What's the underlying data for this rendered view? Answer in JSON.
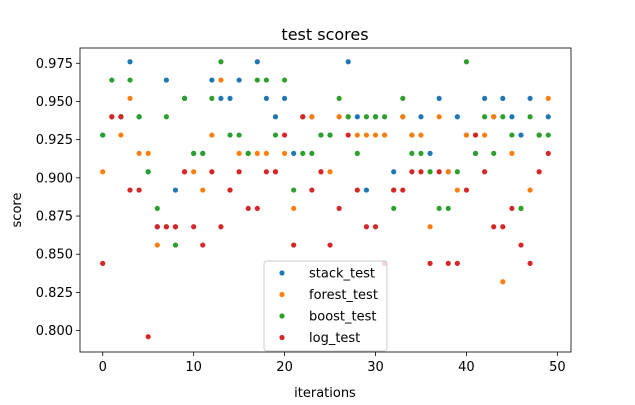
{
  "chart_data": {
    "type": "scatter",
    "title": "test scores",
    "xlabel": "iterations",
    "ylabel": "score",
    "xlim": [
      -2.5,
      51.5
    ],
    "ylim": [
      0.786,
      0.985
    ],
    "x_ticks": [
      0,
      10,
      20,
      30,
      40,
      50
    ],
    "y_ticks": [
      0.8,
      0.825,
      0.85,
      0.875,
      0.9,
      0.925,
      0.95,
      0.975
    ],
    "x_tick_labels": [
      "0",
      "10",
      "20",
      "30",
      "40",
      "50"
    ],
    "y_tick_labels": [
      "0.800",
      "0.825",
      "0.850",
      "0.875",
      "0.900",
      "0.925",
      "0.950",
      "0.975"
    ],
    "legend_position": "lower-center",
    "x": [
      0,
      1,
      2,
      3,
      4,
      5,
      6,
      7,
      8,
      9,
      10,
      11,
      12,
      13,
      14,
      15,
      16,
      17,
      18,
      19,
      20,
      21,
      22,
      23,
      24,
      25,
      26,
      27,
      28,
      29,
      30,
      31,
      32,
      33,
      34,
      35,
      36,
      37,
      38,
      39,
      40,
      41,
      42,
      43,
      44,
      45,
      46,
      47,
      48,
      49
    ],
    "series": [
      {
        "name": "stack_test",
        "color": "#1f77b4",
        "values": [
          0.928,
          0.94,
          0.94,
          0.976,
          0.94,
          0.904,
          0.868,
          0.964,
          0.892,
          0.952,
          0.916,
          0.916,
          0.964,
          0.952,
          0.952,
          0.964,
          0.916,
          0.976,
          0.952,
          0.94,
          0.952,
          0.916,
          0.94,
          0.94,
          0.928,
          0.928,
          0.94,
          0.976,
          0.94,
          0.892,
          0.94,
          0.928,
          0.904,
          0.94,
          0.928,
          0.94,
          0.916,
          0.952,
          0.904,
          0.94,
          0.928,
          0.916,
          0.952,
          0.94,
          0.952,
          0.94,
          0.928,
          0.952,
          0.928,
          0.94
        ]
      },
      {
        "name": "forest_test",
        "color": "#ff7f0e",
        "values": [
          0.904,
          0.94,
          0.928,
          0.952,
          0.916,
          0.916,
          0.856,
          0.868,
          0.868,
          0.904,
          0.904,
          0.892,
          0.928,
          0.964,
          0.892,
          0.916,
          0.916,
          0.916,
          0.916,
          0.904,
          0.916,
          0.88,
          0.94,
          0.94,
          0.904,
          0.904,
          0.94,
          0.94,
          0.928,
          0.928,
          0.928,
          0.928,
          0.892,
          0.94,
          0.928,
          0.928,
          0.868,
          0.94,
          0.904,
          0.892,
          0.928,
          0.928,
          0.928,
          0.94,
          0.832,
          0.916,
          0.88,
          0.892,
          0.928,
          0.952
        ]
      },
      {
        "name": "boost_test",
        "color": "#2ca02c",
        "values": [
          0.928,
          0.964,
          0.94,
          0.964,
          0.94,
          0.904,
          0.88,
          0.94,
          0.856,
          0.952,
          0.916,
          0.916,
          0.952,
          0.976,
          0.928,
          0.928,
          0.916,
          0.964,
          0.964,
          0.928,
          0.964,
          0.892,
          0.916,
          0.916,
          0.928,
          0.928,
          0.952,
          0.94,
          0.916,
          0.94,
          0.94,
          0.94,
          0.88,
          0.952,
          0.916,
          0.916,
          0.904,
          0.88,
          0.88,
          0.904,
          0.976,
          0.916,
          0.94,
          0.916,
          0.94,
          0.928,
          0.88,
          0.94,
          0.928,
          0.928
        ]
      },
      {
        "name": "log_test",
        "color": "#d62728",
        "values": [
          0.844,
          0.94,
          0.94,
          0.892,
          0.892,
          0.796,
          0.868,
          0.868,
          0.868,
          0.904,
          0.868,
          0.856,
          0.904,
          0.868,
          0.892,
          0.904,
          0.88,
          0.88,
          0.904,
          0.904,
          0.928,
          0.856,
          0.94,
          0.892,
          0.904,
          0.856,
          0.88,
          0.928,
          0.892,
          0.868,
          0.868,
          0.844,
          0.892,
          0.892,
          0.904,
          0.904,
          0.844,
          0.904,
          0.844,
          0.844,
          0.892,
          0.928,
          0.904,
          0.868,
          0.868,
          0.88,
          0.856,
          0.844,
          0.904,
          0.916
        ]
      }
    ]
  }
}
